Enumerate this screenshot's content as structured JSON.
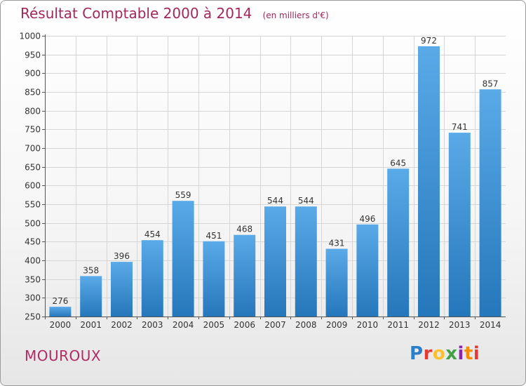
{
  "title": "Résultat Comptable 2000 à 2014",
  "unit_label": "(en milliers d'€)",
  "commune": "MOUROUX",
  "logo": {
    "text": "Proxiti",
    "letters": [
      "P",
      "r",
      "o",
      "x",
      "i",
      "t",
      "i"
    ]
  },
  "colors": {
    "bar_light": "#5aaae8",
    "bar_dark": "#2577bb",
    "title": "#a0285c",
    "grid": "#d6d6d6"
  },
  "chart_data": {
    "type": "bar",
    "title": "Résultat Comptable 2000 à 2014",
    "ylabel": "(en milliers d'€)",
    "categories": [
      "2000",
      "2001",
      "2002",
      "2003",
      "2004",
      "2005",
      "2006",
      "2007",
      "2008",
      "2009",
      "2010",
      "2011",
      "2012",
      "2013",
      "2014"
    ],
    "values": [
      276,
      358,
      396,
      454,
      559,
      451,
      468,
      544,
      544,
      431,
      496,
      645,
      972,
      741,
      857
    ],
    "ylim": [
      250,
      1000
    ],
    "yticks": [
      250,
      300,
      350,
      400,
      450,
      500,
      550,
      600,
      650,
      700,
      750,
      800,
      850,
      900,
      950,
      1000
    ],
    "grid": true
  }
}
